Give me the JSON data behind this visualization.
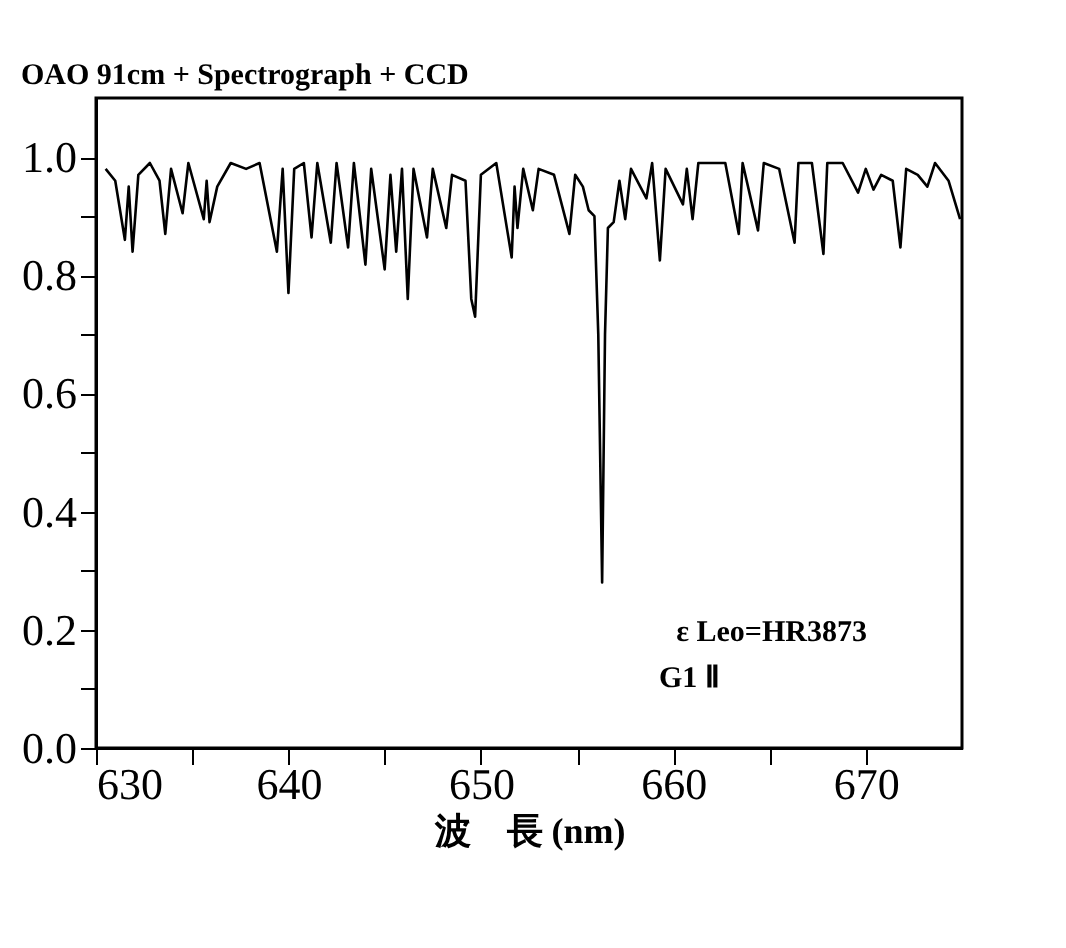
{
  "chart_data": {
    "type": "line",
    "title": "OAO 91cm + Spectrograph + CCD",
    "xlabel": "波　長 (nm)",
    "x": [
      630.5,
      631.0,
      631.5,
      631.7,
      631.9,
      632.2,
      632.8,
      633.3,
      633.6,
      633.9,
      634.5,
      634.8,
      635.6,
      635.75,
      635.9,
      636.3,
      637.0,
      637.8,
      638.5,
      639.4,
      639.7,
      640.0,
      640.3,
      640.8,
      641.2,
      641.5,
      642.2,
      642.5,
      643.1,
      643.4,
      644.0,
      644.3,
      645.0,
      645.3,
      645.6,
      645.9,
      646.2,
      646.5,
      647.2,
      647.5,
      648.2,
      648.5,
      649.2,
      649.5,
      649.7,
      650.0,
      650.8,
      651.6,
      651.75,
      651.9,
      652.2,
      652.7,
      653.0,
      653.8,
      654.6,
      654.9,
      655.3,
      655.6,
      655.9,
      656.1,
      656.3,
      656.45,
      656.6,
      656.9,
      657.2,
      657.5,
      657.8,
      658.6,
      658.9,
      659.3,
      659.6,
      660.5,
      660.7,
      661.0,
      661.3,
      662.0,
      662.7,
      663.4,
      663.6,
      664.4,
      664.7,
      665.5,
      666.3,
      666.5,
      667.2,
      667.8,
      668.0,
      668.8,
      669.6,
      670.0,
      670.4,
      670.8,
      671.4,
      671.8,
      672.1,
      672.7,
      673.2,
      673.6,
      674.3,
      674.9
    ],
    "series": [
      {
        "color": "#000000",
        "values": [
          0.98,
          0.96,
          0.86,
          0.95,
          0.84,
          0.97,
          0.99,
          0.96,
          0.87,
          0.98,
          0.905,
          0.99,
          0.895,
          0.96,
          0.89,
          0.95,
          0.99,
          0.98,
          0.99,
          0.84,
          0.98,
          0.77,
          0.98,
          0.99,
          0.864,
          0.99,
          0.855,
          0.99,
          0.847,
          0.99,
          0.818,
          0.98,
          0.81,
          0.97,
          0.84,
          0.98,
          0.76,
          0.98,
          0.864,
          0.98,
          0.88,
          0.97,
          0.96,
          0.76,
          0.73,
          0.97,
          0.99,
          0.83,
          0.95,
          0.88,
          0.98,
          0.91,
          0.98,
          0.97,
          0.87,
          0.97,
          0.95,
          0.91,
          0.9,
          0.7,
          0.28,
          0.7,
          0.88,
          0.89,
          0.96,
          0.895,
          0.98,
          0.93,
          0.99,
          0.825,
          0.98,
          0.92,
          0.98,
          0.895,
          0.99,
          0.99,
          0.99,
          0.87,
          0.99,
          0.876,
          0.99,
          0.98,
          0.855,
          0.99,
          0.99,
          0.836,
          0.99,
          0.99,
          0.94,
          0.98,
          0.945,
          0.97,
          0.96,
          0.847,
          0.98,
          0.97,
          0.95,
          0.99,
          0.96,
          0.895
        ]
      }
    ],
    "xlim": [
      630,
      675
    ],
    "ylim": [
      0,
      1.1
    ],
    "xticks": [
      630,
      {
        "value": 635,
        "label": null
      },
      640,
      {
        "value": 645,
        "label": null
      },
      650,
      {
        "value": 655,
        "label": null
      },
      660,
      {
        "value": 665,
        "label": null
      },
      670
    ],
    "yticks": [
      {
        "value": 0,
        "label": "0.0"
      },
      {
        "value": 0.1,
        "label": null
      },
      0.2,
      {
        "value": 0.3,
        "label": null
      },
      0.4,
      {
        "value": 0.5,
        "label": null
      },
      0.6,
      {
        "value": 0.7,
        "label": null
      },
      0.8,
      {
        "value": 0.9,
        "label": null
      },
      {
        "value": 1,
        "label": "1.0"
      }
    ],
    "line_style": "solid",
    "marker": "none",
    "annotations": [
      "ε Leo=HR3873",
      "G1 Ⅱ"
    ]
  }
}
